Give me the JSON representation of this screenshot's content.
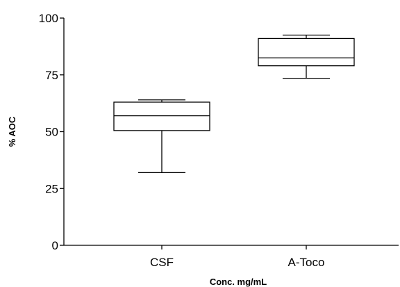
{
  "chart_data": {
    "type": "box",
    "title": "",
    "xlabel": "Conc. mg/mL",
    "ylabel": "% AOC",
    "ylim": [
      0,
      100
    ],
    "yticks": [
      0,
      25,
      50,
      75,
      100
    ],
    "categories": [
      "CSF",
      "A-Toco"
    ],
    "series": [
      {
        "category": "CSF",
        "min": 32,
        "q1": 50.5,
        "median": 57,
        "q3": 63,
        "max": 64
      },
      {
        "category": "A-Toco",
        "min": 73.5,
        "q1": 79,
        "median": 82.5,
        "q3": 91,
        "max": 92.5
      }
    ],
    "grid": false
  }
}
